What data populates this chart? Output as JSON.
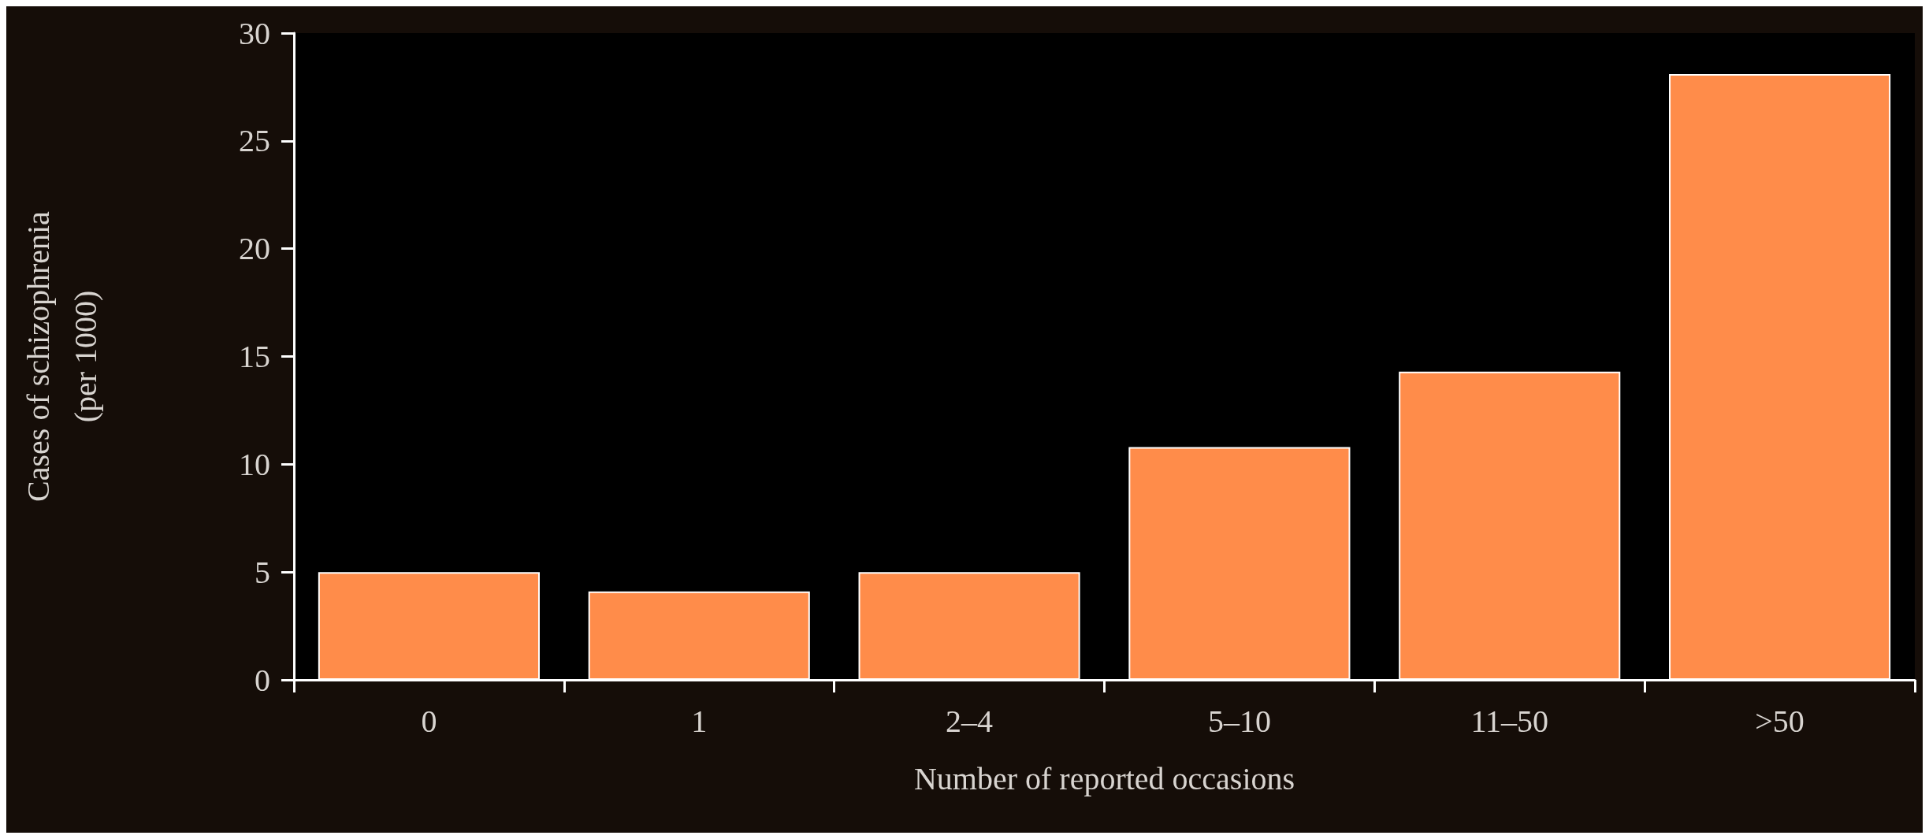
{
  "chart_data": {
    "type": "bar",
    "xlabel": "Number of reported occasions",
    "ylabel": "Cases of schizophrenia\n(per 1000)",
    "categories": [
      "0",
      "1",
      "2–4",
      "5–10",
      "11–50",
      ">50"
    ],
    "values": [
      5,
      4.1,
      5,
      10.8,
      14.3,
      28.1
    ],
    "color": "#ff8c4a",
    "ylim": [
      0,
      30
    ],
    "yticks": [
      0,
      5,
      10,
      15,
      20,
      25,
      30
    ],
    "grid": false
  }
}
